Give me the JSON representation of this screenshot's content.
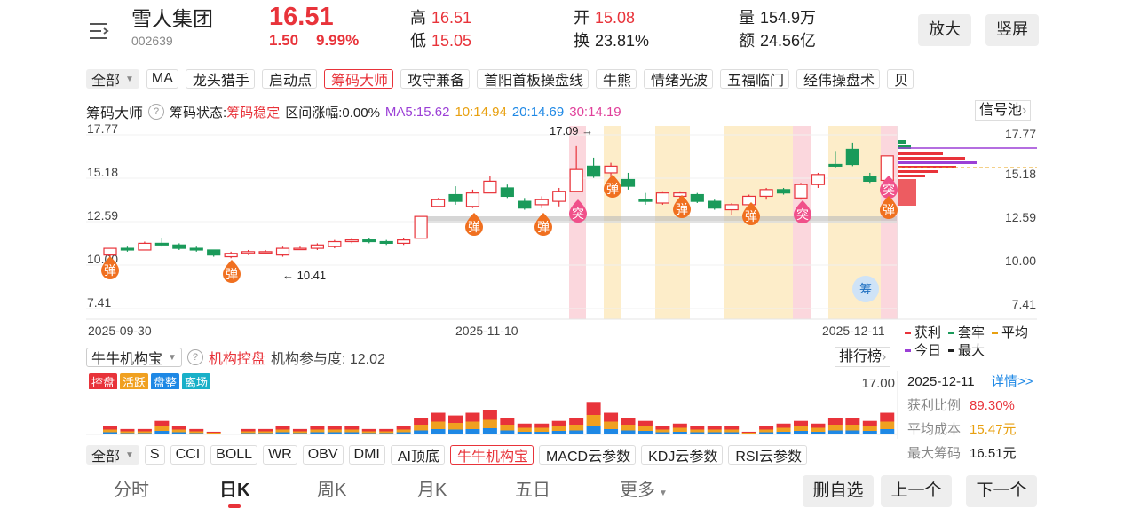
{
  "header": {
    "name": "雪人集团",
    "code": "002639",
    "price": "16.51",
    "change": "1.50",
    "change_pct": "9.99%",
    "stats": [
      {
        "label": "高",
        "value": "16.51",
        "color": "#e8333a"
      },
      {
        "label": "低",
        "value": "15.05",
        "color": "#e8333a"
      },
      {
        "label": "开",
        "value": "15.08",
        "color": "#e8333a"
      },
      {
        "label": "换",
        "value": "23.81%",
        "color": "#222"
      },
      {
        "label": "量",
        "value": "154.9万",
        "color": "#222"
      },
      {
        "label": "额",
        "value": "24.56亿",
        "color": "#222"
      }
    ],
    "buttons": [
      "放大",
      "竖屏"
    ]
  },
  "indicator_tabs": {
    "all": "全部",
    "plain": "MA",
    "items": [
      "龙头猎手",
      "启动点",
      "筹码大师",
      "攻守兼备",
      "首阳首板操盘线",
      "牛熊",
      "情绪光波",
      "五福临门",
      "经伟操盘术",
      "贝"
    ],
    "selected": "筹码大师"
  },
  "chip_bar": {
    "title": "筹码大师",
    "status_label": "筹码状态:",
    "status": "筹码稳定",
    "range": "区间涨幅:0.00%",
    "ma": [
      {
        "label": "MA5:15.62",
        "color": "#9b3fd6"
      },
      {
        "label": "10:14.94",
        "color": "#e8a010"
      },
      {
        "label": "20:14.69",
        "color": "#1e88e5"
      },
      {
        "label": "30:14.19",
        "color": "#e0409a"
      }
    ],
    "signal": "信号池"
  },
  "chart_data": {
    "type": "candlestick",
    "ylim": [
      7.41,
      17.77
    ],
    "yticks": [
      17.77,
      15.18,
      12.59,
      {
        "value": 10,
        "label": "10.00"
      },
      7.41
    ],
    "dates": [
      "2025-09-30",
      "2025-11-10",
      "2025-12-11"
    ],
    "up_color": "#e8333a",
    "down_color": "#1a9a5a",
    "open": [
      10.6,
      11.0,
      10.9,
      11.3,
      11.2,
      11.0,
      10.9,
      10.5,
      10.7,
      10.8,
      10.6,
      11.0,
      11.0,
      11.1,
      11.4,
      11.5,
      11.4,
      11.3,
      11.6,
      13.5,
      14.2,
      13.5,
      14.3,
      14.6,
      13.8,
      13.6,
      13.8,
      14.4,
      15.9,
      15.5,
      15.1,
      13.9,
      13.7,
      14.1,
      14.2,
      13.8,
      13.3,
      13.6,
      14.1,
      14.5,
      14.0,
      14.8,
      16.0,
      16.9,
      15.3,
      15.05
    ],
    "high": [
      11.0,
      11.1,
      11.4,
      11.6,
      11.3,
      11.1,
      10.9,
      10.8,
      10.9,
      10.9,
      11.1,
      11.1,
      11.3,
      11.5,
      11.6,
      11.6,
      11.5,
      11.6,
      12.9,
      14.0,
      14.7,
      14.5,
      15.3,
      14.8,
      14.0,
      14.1,
      14.6,
      17.09,
      16.4,
      16.1,
      15.5,
      14.3,
      14.4,
      14.4,
      14.3,
      13.9,
      13.7,
      14.2,
      14.6,
      14.6,
      14.9,
      15.5,
      16.8,
      17.3,
      15.5,
      16.51
    ],
    "low": [
      10.2,
      10.8,
      10.9,
      11.1,
      10.9,
      10.8,
      10.5,
      10.41,
      10.6,
      10.7,
      10.5,
      10.9,
      10.9,
      11.0,
      11.3,
      11.3,
      11.2,
      11.2,
      11.6,
      13.5,
      13.6,
      13.4,
      14.3,
      14.0,
      13.3,
      13.4,
      13.5,
      14.4,
      15.2,
      15.1,
      14.5,
      13.6,
      13.6,
      13.8,
      13.7,
      13.3,
      13.0,
      13.5,
      13.9,
      14.2,
      13.9,
      14.6,
      15.8,
      15.9,
      14.9,
      15.05
    ],
    "close": [
      11.0,
      10.9,
      11.3,
      11.2,
      11.0,
      10.9,
      10.6,
      10.7,
      10.8,
      10.8,
      11.0,
      11.0,
      11.2,
      11.4,
      11.5,
      11.4,
      11.3,
      11.5,
      12.9,
      13.9,
      13.8,
      14.3,
      15.0,
      14.1,
      13.4,
      13.9,
      14.4,
      15.7,
      15.3,
      15.9,
      14.7,
      13.8,
      14.3,
      14.3,
      13.8,
      13.4,
      13.6,
      14.1,
      14.5,
      14.3,
      14.8,
      15.4,
      15.9,
      16.0,
      15.0,
      16.51
    ],
    "annotations": [
      "17.09 →",
      "← 10.41"
    ],
    "markers": [
      "弹",
      "弹",
      "弹",
      "弹",
      "突",
      "弹",
      "弹",
      "弹",
      "突",
      "突",
      "弹",
      "筹"
    ],
    "legend": [
      {
        "name": "获利",
        "color": "#e8333a"
      },
      {
        "name": "套牢",
        "color": "#1a9a5a"
      },
      {
        "name": "平均",
        "color": "#e8a010"
      },
      {
        "name": "今日",
        "color": "#9b3fd6"
      },
      {
        "name": "最大",
        "color": "#222"
      }
    ]
  },
  "volume": {
    "type": "bar",
    "selector": "牛牛机构宝",
    "label": "机构控盘",
    "participation": "机构参与度: 12.02",
    "ranking": "排行榜",
    "tags": [
      {
        "name": "控盘",
        "color": "#e8333a"
      },
      {
        "name": "活跃",
        "color": "#f0a020"
      },
      {
        "name": "盘整",
        "color": "#1e88e5"
      },
      {
        "name": "离场",
        "color": "#18b0c8"
      }
    ],
    "ylim": [
      0,
      17
    ],
    "yticks": [
      {
        "value": 17,
        "label": "17.00"
      }
    ],
    "values": [
      3,
      2,
      2,
      5,
      3,
      2,
      1,
      0,
      2,
      2,
      3,
      2,
      3,
      3,
      3,
      2,
      2,
      3,
      6,
      8,
      7,
      8,
      9,
      6,
      4,
      4,
      5,
      6,
      12,
      8,
      6,
      5,
      3,
      4,
      3,
      3,
      3,
      1,
      3,
      4,
      5,
      4,
      6,
      6,
      5,
      8
    ]
  },
  "detail": {
    "date": "2025-12-11",
    "link": "详情>>",
    "rows": [
      {
        "label": "获利比例",
        "value": "89.30%"
      },
      {
        "label": "平均成本",
        "value": "15.47元"
      },
      {
        "label": "最大筹码",
        "value": "16.51元"
      }
    ]
  },
  "indicator_row": {
    "all": "全部",
    "plain": [
      "S",
      "CCI",
      "BOLL",
      "WR",
      "OBV",
      "DMI"
    ],
    "items": [
      "AI顶底",
      "牛牛机构宝",
      "MACD云参数",
      "KDJ云参数",
      "RSI云参数"
    ],
    "selected": "牛牛机构宝"
  },
  "nav": {
    "tabs": [
      "分时",
      "日K",
      "周K",
      "月K",
      "五日",
      "更多"
    ],
    "active": "日K",
    "buttons": [
      "删自选",
      "上一个",
      "下一个"
    ]
  }
}
